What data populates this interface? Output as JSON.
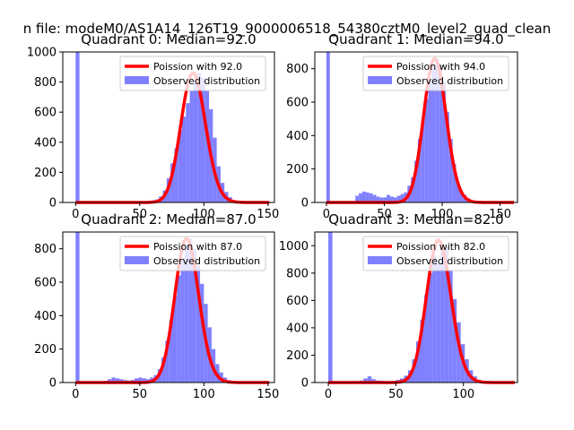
{
  "figure": {
    "suptitle": "n file: modeM0/AS1A14_126T19_9000006518_54380cztM0_level2_quad_clean"
  },
  "colors": {
    "poisson_line": "#ff0000",
    "histogram": "#8080ff",
    "axes": "#000000",
    "background": "#ffffff"
  },
  "chart_data": [
    {
      "type": "bar",
      "title": "Quadrant 0: Median=92.0",
      "xlim": [
        -10,
        155
      ],
      "ylim": [
        0,
        1000
      ],
      "xticks": [
        0,
        50,
        100,
        150
      ],
      "yticks": [
        0,
        200,
        400,
        600,
        800,
        1000
      ],
      "legend": [
        "Poission with 92.0",
        "Observed distribution"
      ],
      "legend_position": "top-right",
      "poisson_mean": 92,
      "poisson_peak": 860,
      "poisson_range": [
        0,
        151
      ],
      "hist_x": [
        0,
        56,
        59,
        62,
        65,
        68,
        71,
        74,
        77,
        80,
        83,
        86,
        89,
        92,
        95,
        98,
        101,
        104,
        107,
        110,
        113,
        116,
        119,
        122,
        125
      ],
      "hist_y": [
        1000,
        10,
        15,
        20,
        40,
        80,
        160,
        260,
        360,
        480,
        570,
        660,
        740,
        810,
        860,
        830,
        740,
        620,
        430,
        240,
        130,
        70,
        35,
        15,
        8
      ],
      "bin_width": 3
    },
    {
      "type": "bar",
      "title": "Quadrant 1: Median=94.0",
      "xlim": [
        -10,
        165
      ],
      "ylim": [
        0,
        900
      ],
      "xticks": [
        0,
        50,
        100,
        150
      ],
      "yticks": [
        0,
        200,
        400,
        600,
        800
      ],
      "legend": [
        "Poission with 94.0",
        "Observed distribution"
      ],
      "legend_position": "top-right",
      "poisson_mean": 94,
      "poisson_peak": 860,
      "poisson_range": [
        0,
        162
      ],
      "hist_x": [
        0,
        25,
        28,
        31,
        34,
        37,
        40,
        43,
        46,
        49,
        52,
        55,
        58,
        61,
        64,
        67,
        70,
        73,
        76,
        79,
        82,
        85,
        88,
        91,
        94,
        97,
        100,
        103,
        106,
        109,
        112,
        115,
        118,
        121,
        124,
        127
      ],
      "hist_y": [
        900,
        40,
        55,
        65,
        60,
        55,
        45,
        35,
        30,
        30,
        45,
        35,
        30,
        40,
        50,
        60,
        100,
        150,
        250,
        380,
        500,
        620,
        720,
        800,
        860,
        820,
        720,
        540,
        380,
        230,
        120,
        70,
        45,
        25,
        12,
        6
      ],
      "bin_width": 3
    },
    {
      "type": "bar",
      "title": "Quadrant 2: Median=87.0",
      "xlim": [
        -10,
        155
      ],
      "ylim": [
        0,
        900
      ],
      "xticks": [
        0,
        50,
        100,
        150
      ],
      "yticks": [
        0,
        200,
        400,
        600,
        800
      ],
      "legend": [
        "Poission with 87.0",
        "Observed distribution"
      ],
      "legend_position": "top-right",
      "poisson_mean": 87,
      "poisson_peak": 860,
      "poisson_range": [
        0,
        151
      ],
      "hist_x": [
        0,
        22,
        25,
        28,
        31,
        34,
        37,
        40,
        43,
        46,
        49,
        52,
        55,
        58,
        61,
        64,
        67,
        70,
        73,
        76,
        79,
        82,
        85,
        88,
        91,
        94,
        97,
        100,
        103,
        106,
        109,
        112,
        115,
        118,
        121
      ],
      "hist_y": [
        900,
        10,
        20,
        30,
        25,
        20,
        15,
        12,
        15,
        25,
        30,
        25,
        20,
        30,
        45,
        80,
        150,
        250,
        370,
        520,
        640,
        740,
        820,
        860,
        800,
        700,
        590,
        470,
        330,
        200,
        110,
        60,
        30,
        15,
        6
      ],
      "bin_width": 3
    },
    {
      "type": "bar",
      "title": "Quadrant 3: Median=82.0",
      "xlim": [
        -10,
        140
      ],
      "ylim": [
        0,
        1100
      ],
      "xticks": [
        0,
        50,
        100
      ],
      "yticks": [
        0,
        200,
        400,
        600,
        800,
        1000
      ],
      "legend": [
        "Poission with 82.0",
        "Observed distribution"
      ],
      "legend_position": "top-right",
      "poisson_mean": 82,
      "poisson_peak": 1040,
      "poisson_range": [
        0,
        138
      ],
      "hist_x": [
        0,
        20,
        23,
        26,
        29,
        32,
        35,
        38,
        41,
        44,
        47,
        50,
        53,
        56,
        59,
        62,
        65,
        68,
        71,
        74,
        77,
        80,
        83,
        86,
        89,
        92,
        95,
        98,
        101,
        104,
        107,
        110,
        113
      ],
      "hist_y": [
        1100,
        10,
        15,
        30,
        45,
        25,
        15,
        12,
        10,
        10,
        12,
        20,
        30,
        50,
        90,
        170,
        300,
        460,
        640,
        800,
        930,
        880,
        1020,
        990,
        820,
        610,
        440,
        280,
        170,
        90,
        45,
        20,
        8
      ],
      "bin_width": 3
    }
  ]
}
